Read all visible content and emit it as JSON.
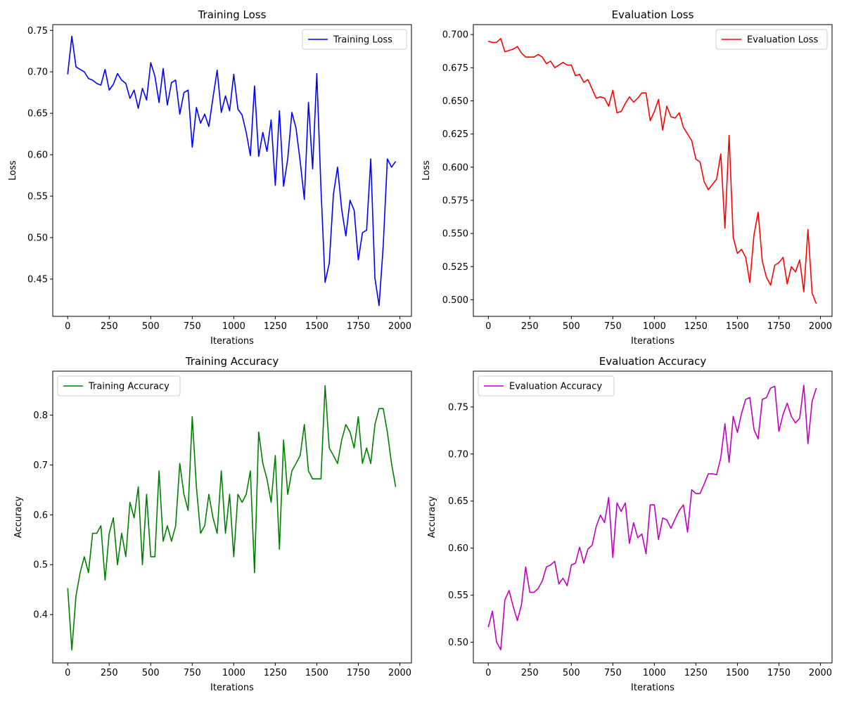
{
  "chart_data": [
    {
      "type": "line",
      "title": "Training Loss",
      "xlabel": "Iterations",
      "ylabel": "Loss",
      "xlim": [
        -90,
        2070
      ],
      "ylim": [
        0.405,
        0.757
      ],
      "xticks": [
        0,
        250,
        500,
        750,
        1000,
        1250,
        1500,
        1750,
        2000
      ],
      "yticks": [
        0.45,
        0.5,
        0.55,
        0.6,
        0.65,
        0.7,
        0.75
      ],
      "ytick_labels": [
        "0.45",
        "0.50",
        "0.55",
        "0.60",
        "0.65",
        "0.70",
        "0.75"
      ],
      "legend_position": "top-right",
      "grid": false,
      "series": [
        {
          "name": "Training Loss",
          "color": "#0000ff",
          "x": [
            0,
            25,
            50,
            75,
            100,
            125,
            150,
            175,
            200,
            225,
            250,
            275,
            300,
            325,
            350,
            375,
            400,
            425,
            450,
            475,
            500,
            525,
            550,
            575,
            600,
            625,
            650,
            675,
            700,
            725,
            750,
            775,
            800,
            825,
            850,
            875,
            900,
            925,
            950,
            975,
            1000,
            1025,
            1050,
            1075,
            1100,
            1125,
            1150,
            1175,
            1200,
            1225,
            1250,
            1275,
            1300,
            1325,
            1350,
            1375,
            1400,
            1425,
            1450,
            1475,
            1500,
            1525,
            1550,
            1575,
            1600,
            1625,
            1650,
            1675,
            1700,
            1725,
            1750,
            1775,
            1800,
            1825,
            1850,
            1875,
            1900,
            1925,
            1950,
            1975
          ],
          "y": [
            0.697,
            0.743,
            0.706,
            0.703,
            0.7,
            0.692,
            0.69,
            0.686,
            0.684,
            0.703,
            0.678,
            0.685,
            0.698,
            0.69,
            0.686,
            0.668,
            0.678,
            0.656,
            0.68,
            0.666,
            0.711,
            0.695,
            0.663,
            0.704,
            0.66,
            0.687,
            0.69,
            0.649,
            0.675,
            0.678,
            0.609,
            0.657,
            0.638,
            0.649,
            0.634,
            0.669,
            0.702,
            0.651,
            0.671,
            0.653,
            0.697,
            0.655,
            0.648,
            0.627,
            0.599,
            0.683,
            0.598,
            0.627,
            0.604,
            0.642,
            0.563,
            0.653,
            0.562,
            0.595,
            0.651,
            0.632,
            0.592,
            0.546,
            0.663,
            0.583,
            0.698,
            0.56,
            0.446,
            0.469,
            0.552,
            0.585,
            0.534,
            0.502,
            0.545,
            0.533,
            0.473,
            0.506,
            0.509,
            0.595,
            0.451,
            0.418,
            0.49,
            0.595,
            0.585,
            0.592
          ]
        }
      ]
    },
    {
      "type": "line",
      "title": "Evaluation Loss",
      "xlabel": "Iterations",
      "ylabel": "Loss",
      "xlim": [
        -90,
        2070
      ],
      "ylim": [
        0.4875,
        0.7075
      ],
      "xticks": [
        0,
        250,
        500,
        750,
        1000,
        1250,
        1500,
        1750,
        2000
      ],
      "yticks": [
        0.5,
        0.525,
        0.55,
        0.575,
        0.6,
        0.625,
        0.65,
        0.675,
        0.7
      ],
      "ytick_labels": [
        "0.500",
        "0.525",
        "0.550",
        "0.575",
        "0.600",
        "0.625",
        "0.650",
        "0.675",
        "0.700"
      ],
      "legend_position": "top-right",
      "grid": false,
      "series": [
        {
          "name": "Evaluation Loss",
          "color": "#ff0000",
          "x": [
            0,
            25,
            50,
            75,
            100,
            125,
            150,
            175,
            200,
            225,
            250,
            275,
            300,
            325,
            350,
            375,
            400,
            425,
            450,
            475,
            500,
            525,
            550,
            575,
            600,
            625,
            650,
            675,
            700,
            725,
            750,
            775,
            800,
            825,
            850,
            875,
            900,
            925,
            950,
            975,
            1000,
            1025,
            1050,
            1075,
            1100,
            1125,
            1150,
            1175,
            1200,
            1225,
            1250,
            1275,
            1300,
            1325,
            1350,
            1375,
            1400,
            1425,
            1450,
            1475,
            1500,
            1525,
            1550,
            1575,
            1600,
            1625,
            1650,
            1675,
            1700,
            1725,
            1750,
            1775,
            1800,
            1825,
            1850,
            1875,
            1900,
            1925,
            1950,
            1975
          ],
          "y": [
            0.695,
            0.694,
            0.694,
            0.697,
            0.687,
            0.688,
            0.689,
            0.691,
            0.686,
            0.683,
            0.683,
            0.683,
            0.685,
            0.683,
            0.678,
            0.68,
            0.675,
            0.677,
            0.679,
            0.677,
            0.677,
            0.669,
            0.67,
            0.664,
            0.666,
            0.659,
            0.652,
            0.653,
            0.652,
            0.646,
            0.658,
            0.641,
            0.642,
            0.648,
            0.653,
            0.649,
            0.652,
            0.656,
            0.656,
            0.635,
            0.642,
            0.651,
            0.628,
            0.646,
            0.638,
            0.637,
            0.641,
            0.63,
            0.625,
            0.62,
            0.606,
            0.604,
            0.589,
            0.583,
            0.587,
            0.591,
            0.61,
            0.554,
            0.624,
            0.547,
            0.535,
            0.538,
            0.532,
            0.513,
            0.549,
            0.566,
            0.529,
            0.517,
            0.511,
            0.526,
            0.528,
            0.532,
            0.512,
            0.525,
            0.521,
            0.53,
            0.506,
            0.553,
            0.505,
            0.497
          ]
        }
      ]
    },
    {
      "type": "line",
      "title": "Training Accuracy",
      "xlabel": "Iterations",
      "ylabel": "Accuracy",
      "xlim": [
        -90,
        2070
      ],
      "ylim": [
        0.303,
        0.888
      ],
      "xticks": [
        0,
        250,
        500,
        750,
        1000,
        1250,
        1500,
        1750,
        2000
      ],
      "yticks": [
        0.4,
        0.5,
        0.6,
        0.7,
        0.8
      ],
      "ytick_labels": [
        "0.4",
        "0.5",
        "0.6",
        "0.7",
        "0.8"
      ],
      "legend_position": "top-left",
      "grid": false,
      "series": [
        {
          "name": "Training Accuracy",
          "color": "#008000",
          "x": [
            0,
            25,
            50,
            75,
            100,
            125,
            150,
            175,
            200,
            225,
            250,
            275,
            300,
            325,
            350,
            375,
            400,
            425,
            450,
            475,
            500,
            525,
            550,
            575,
            600,
            625,
            650,
            675,
            700,
            725,
            750,
            775,
            800,
            825,
            850,
            875,
            900,
            925,
            950,
            975,
            1000,
            1025,
            1050,
            1075,
            1100,
            1125,
            1150,
            1175,
            1200,
            1225,
            1250,
            1275,
            1300,
            1325,
            1350,
            1375,
            1400,
            1425,
            1450,
            1475,
            1500,
            1525,
            1550,
            1575,
            1600,
            1625,
            1650,
            1675,
            1700,
            1725,
            1750,
            1775,
            1800,
            1825,
            1850,
            1875,
            1900,
            1925,
            1950,
            1975
          ],
          "y": [
            0.453,
            0.329,
            0.438,
            0.484,
            0.516,
            0.484,
            0.563,
            0.563,
            0.578,
            0.469,
            0.563,
            0.594,
            0.5,
            0.563,
            0.516,
            0.625,
            0.594,
            0.656,
            0.5,
            0.641,
            0.516,
            0.516,
            0.688,
            0.547,
            0.578,
            0.547,
            0.578,
            0.703,
            0.641,
            0.609,
            0.797,
            0.656,
            0.563,
            0.578,
            0.641,
            0.594,
            0.563,
            0.688,
            0.563,
            0.641,
            0.516,
            0.641,
            0.625,
            0.641,
            0.688,
            0.484,
            0.766,
            0.703,
            0.672,
            0.625,
            0.719,
            0.531,
            0.75,
            0.641,
            0.688,
            0.703,
            0.719,
            0.781,
            0.688,
            0.672,
            0.672,
            0.672,
            0.859,
            0.734,
            0.719,
            0.703,
            0.75,
            0.781,
            0.766,
            0.734,
            0.797,
            0.703,
            0.734,
            0.703,
            0.781,
            0.813,
            0.813,
            0.766,
            0.703,
            0.656
          ]
        }
      ]
    },
    {
      "type": "line",
      "title": "Evaluation Accuracy",
      "xlabel": "Iterations",
      "ylabel": "Accuracy",
      "xlim": [
        -90,
        2070
      ],
      "ylim": [
        0.478,
        0.788
      ],
      "xticks": [
        0,
        250,
        500,
        750,
        1000,
        1250,
        1500,
        1750,
        2000
      ],
      "yticks": [
        0.5,
        0.55,
        0.6,
        0.65,
        0.7,
        0.75
      ],
      "ytick_labels": [
        "0.50",
        "0.55",
        "0.60",
        "0.65",
        "0.70",
        "0.75"
      ],
      "legend_position": "top-left",
      "grid": false,
      "series": [
        {
          "name": "Evaluation Accuracy",
          "color": "#bf00bf",
          "x": [
            0,
            25,
            50,
            75,
            100,
            125,
            150,
            175,
            200,
            225,
            250,
            275,
            300,
            325,
            350,
            375,
            400,
            425,
            450,
            475,
            500,
            525,
            550,
            575,
            600,
            625,
            650,
            675,
            700,
            725,
            750,
            775,
            800,
            825,
            850,
            875,
            900,
            925,
            950,
            975,
            1000,
            1025,
            1050,
            1075,
            1100,
            1125,
            1150,
            1175,
            1200,
            1225,
            1250,
            1275,
            1300,
            1325,
            1350,
            1375,
            1400,
            1425,
            1450,
            1475,
            1500,
            1525,
            1550,
            1575,
            1600,
            1625,
            1650,
            1675,
            1700,
            1725,
            1750,
            1775,
            1800,
            1825,
            1850,
            1875,
            1900,
            1925,
            1950,
            1975
          ],
          "y": [
            0.516,
            0.533,
            0.5,
            0.492,
            0.545,
            0.555,
            0.538,
            0.523,
            0.54,
            0.58,
            0.553,
            0.553,
            0.557,
            0.565,
            0.58,
            0.582,
            0.586,
            0.562,
            0.568,
            0.56,
            0.582,
            0.584,
            0.601,
            0.584,
            0.599,
            0.603,
            0.623,
            0.635,
            0.627,
            0.654,
            0.59,
            0.648,
            0.639,
            0.648,
            0.605,
            0.627,
            0.611,
            0.615,
            0.594,
            0.646,
            0.646,
            0.609,
            0.632,
            0.63,
            0.621,
            0.631,
            0.64,
            0.646,
            0.617,
            0.662,
            0.658,
            0.658,
            0.668,
            0.679,
            0.679,
            0.678,
            0.696,
            0.732,
            0.691,
            0.74,
            0.723,
            0.743,
            0.758,
            0.76,
            0.726,
            0.716,
            0.758,
            0.76,
            0.77,
            0.772,
            0.724,
            0.742,
            0.754,
            0.74,
            0.733,
            0.738,
            0.773,
            0.711,
            0.756,
            0.77
          ]
        }
      ]
    }
  ]
}
